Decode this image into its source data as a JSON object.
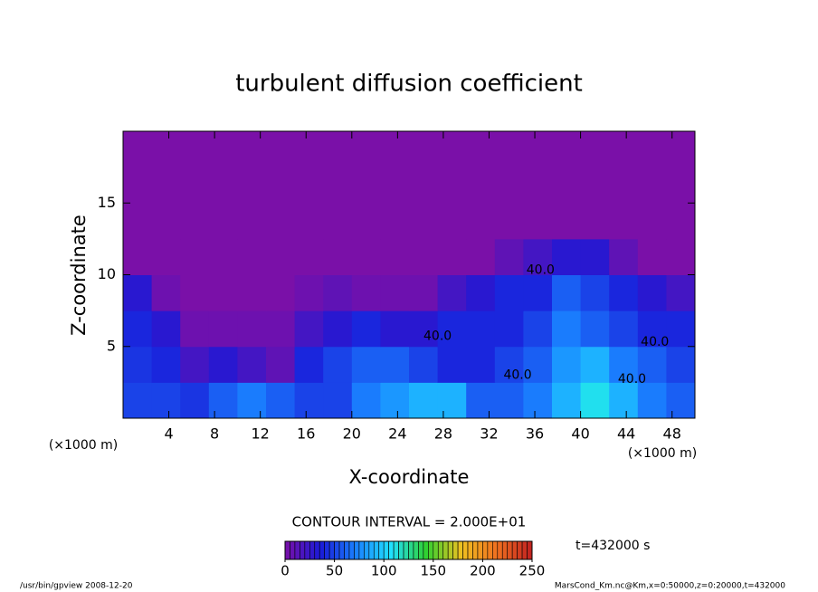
{
  "chart_data": {
    "type": "heatmap",
    "title": "turbulent diffusion coefficient",
    "x_label": "X-coordinate",
    "y_label": "Z-coordinate",
    "x_unit": "(×1000 m)",
    "y_unit": "(×1000 m)",
    "xlim": [
      0,
      50
    ],
    "ylim": [
      0,
      20
    ],
    "xticks": [
      4,
      8,
      12,
      16,
      20,
      24,
      28,
      32,
      36,
      40,
      44,
      48
    ],
    "yticks": [
      5,
      10,
      15
    ],
    "x_edges": [
      0,
      2.5,
      5,
      7.5,
      10,
      12.5,
      15,
      17.5,
      20,
      22.5,
      25,
      27.5,
      30,
      32.5,
      35,
      37.5,
      40,
      42.5,
      45,
      47.5,
      50
    ],
    "y_edges": [
      0,
      2.5,
      5,
      7.5,
      10,
      12.5,
      20
    ],
    "values": [
      [
        50,
        50,
        45,
        60,
        70,
        60,
        50,
        50,
        70,
        80,
        90,
        90,
        60,
        60,
        70,
        90,
        110,
        90,
        70,
        60
      ],
      [
        45,
        40,
        20,
        30,
        20,
        10,
        40,
        50,
        60,
        60,
        50,
        40,
        40,
        50,
        60,
        80,
        90,
        70,
        60,
        50
      ],
      [
        40,
        30,
        5,
        5,
        5,
        5,
        20,
        30,
        40,
        30,
        30,
        40,
        40,
        40,
        50,
        70,
        60,
        50,
        40,
        40
      ],
      [
        30,
        5,
        0,
        0,
        0,
        0,
        5,
        10,
        5,
        5,
        5,
        20,
        30,
        40,
        40,
        60,
        50,
        40,
        30,
        20
      ],
      [
        0,
        0,
        0,
        0,
        0,
        0,
        0,
        0,
        0,
        0,
        0,
        0,
        0,
        10,
        20,
        30,
        30,
        10,
        0,
        0
      ],
      [
        0,
        0,
        0,
        0,
        0,
        0,
        0,
        0,
        0,
        0,
        0,
        0,
        0,
        0,
        0,
        0,
        0,
        0,
        0,
        0
      ]
    ],
    "contour_labels": [
      {
        "text": "40.0",
        "x": 27.5,
        "y": 5.7
      },
      {
        "text": "40.0",
        "x": 36.5,
        "y": 10.3
      },
      {
        "text": "40.0",
        "x": 46.5,
        "y": 5.3
      },
      {
        "text": "40.0",
        "x": 44.5,
        "y": 2.7
      },
      {
        "text": "40.0",
        "x": 34.5,
        "y": 3.0
      }
    ],
    "contour_interval": "CONTOUR INTERVAL = 2.000E+01",
    "time_label": "t=432000 s",
    "colorbar": {
      "lim": [
        0,
        250
      ],
      "ticks": [
        0,
        50,
        100,
        150,
        200,
        250
      ],
      "step": 5
    },
    "colormap": [
      "#7a10a8",
      "#1a1ad8",
      "#1a80ff",
      "#20e0ff",
      "#30d030",
      "#f0c020",
      "#f07020",
      "#c02020"
    ],
    "footer_left": "/usr/bin/gpview   2008-12-20",
    "footer_right": "MarsCond_Km.nc@Km,x=0:50000,z=0:20000,t=432000"
  }
}
